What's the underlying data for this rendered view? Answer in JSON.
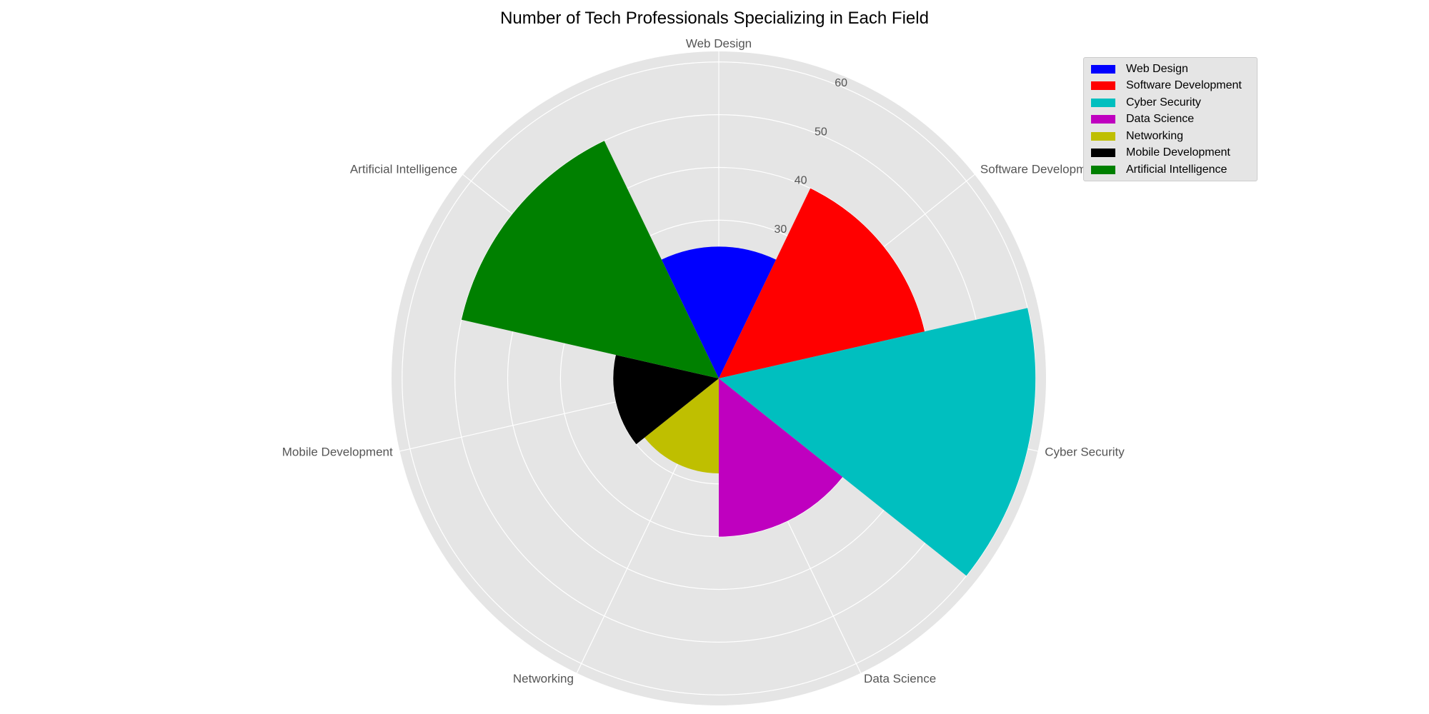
{
  "chart_data": {
    "type": "polar-bar",
    "title": "Number of Tech Professionals Specializing in Each Field",
    "categories": [
      "Web Design",
      "Software Development",
      "Cyber Security",
      "Data Science",
      "Networking",
      "Mobile Development",
      "Artificial Intelligence"
    ],
    "values": [
      25,
      40,
      60,
      30,
      18,
      20,
      50
    ],
    "colors": [
      "#0000ff",
      "#ff0000",
      "#00bfbf",
      "#bf00bf",
      "#bfbf00",
      "#000000",
      "#008000"
    ],
    "radial_ticks": [
      30,
      40,
      50,
      60
    ],
    "rlim": [
      0,
      62
    ],
    "grid": true,
    "legend_position": "top-right"
  }
}
